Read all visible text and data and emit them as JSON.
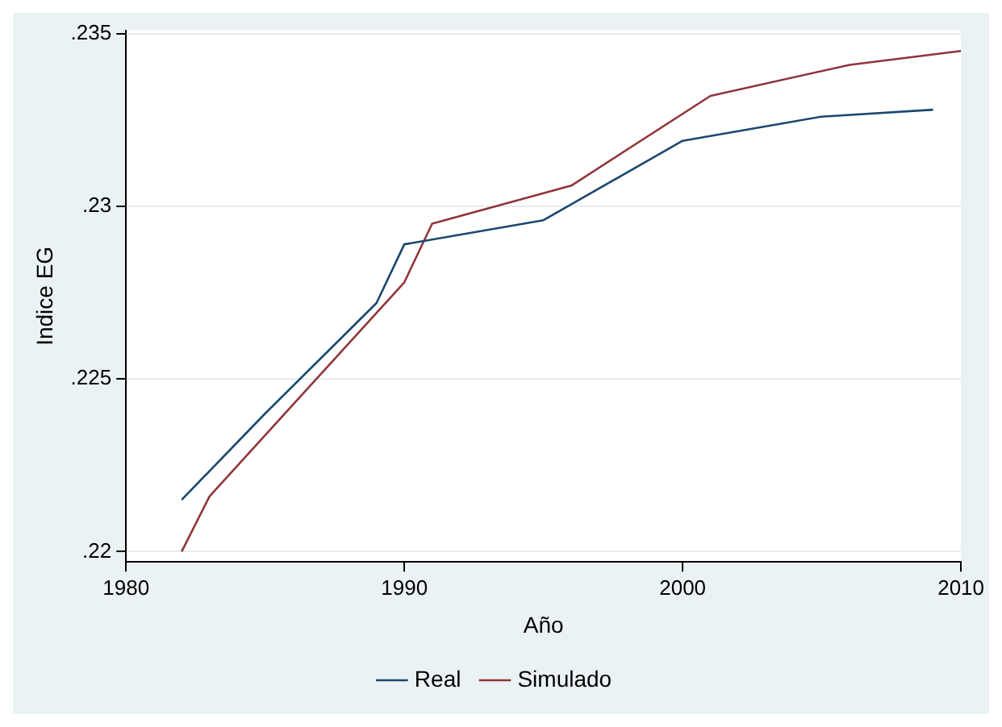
{
  "chart_data": {
    "type": "line",
    "xlabel": "Año",
    "ylabel": "Indice EG",
    "xlim": [
      1980,
      2010
    ],
    "xticks": [
      1980,
      1990,
      2000,
      2010
    ],
    "ylim": [
      0.2197,
      0.2351
    ],
    "yticks": [
      {
        "value": 0.22,
        "label": ".22"
      },
      {
        "value": 0.225,
        "label": ".225"
      },
      {
        "value": 0.23,
        "label": ".23"
      },
      {
        "value": 0.235,
        "label": ".235"
      }
    ],
    "grid": "y",
    "legend": "bottom",
    "marker": "none",
    "line_style": "solid",
    "series": [
      {
        "name": "Real",
        "color": "#1a476f",
        "x": [
          1982,
          1985,
          1989,
          1990,
          1995,
          2000,
          2005,
          2009
        ],
        "values": [
          0.2215,
          0.224,
          0.2272,
          0.2289,
          0.2296,
          0.2319,
          0.2326,
          0.2328
        ]
      },
      {
        "name": "Simulado",
        "color": "#90353b",
        "x": [
          1982,
          1983,
          1990,
          1991,
          1996,
          2001,
          2006,
          2010
        ],
        "values": [
          0.22,
          0.2216,
          0.2278,
          0.2295,
          0.2306,
          0.2332,
          0.2341,
          0.2345
        ]
      }
    ]
  }
}
